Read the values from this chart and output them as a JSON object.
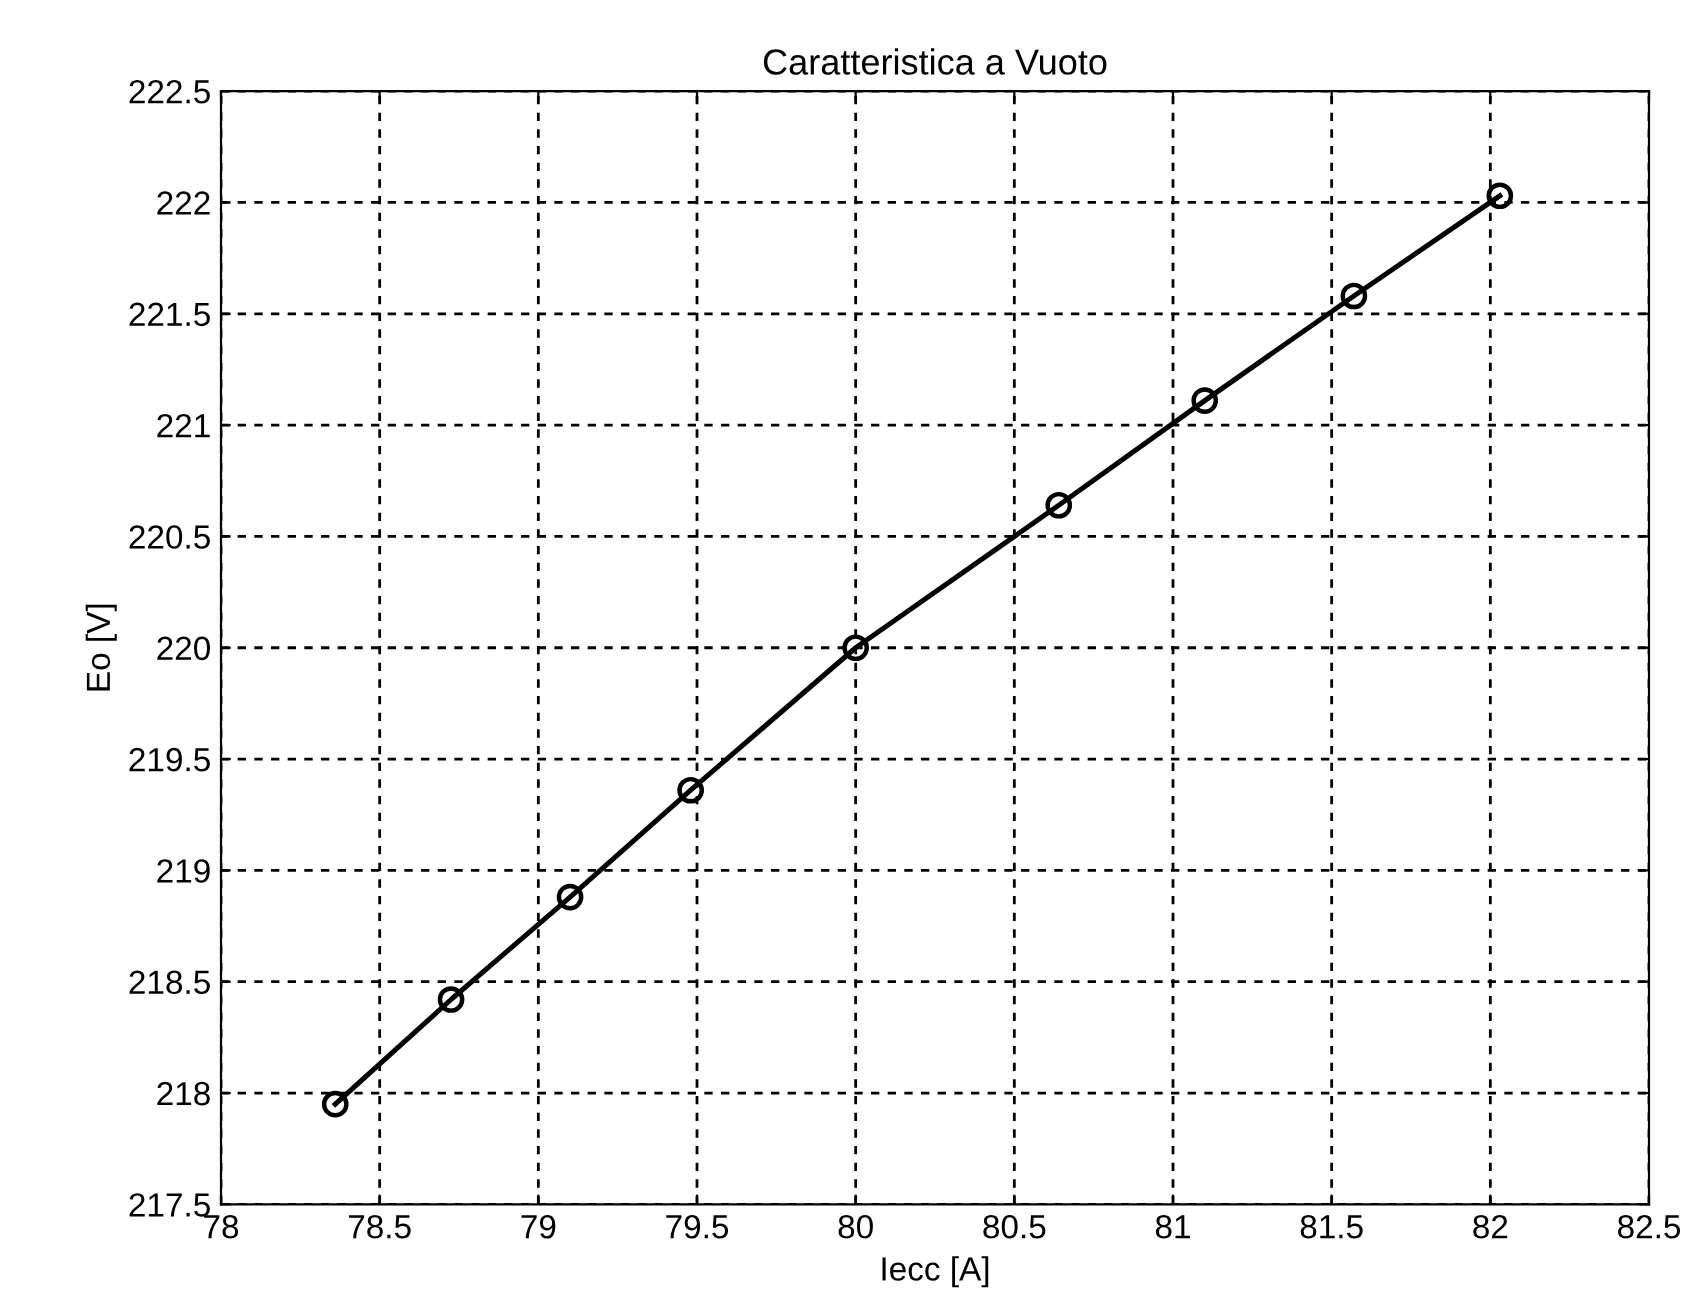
{
  "chart_data": {
    "type": "line",
    "title": "Caratteristica a Vuoto",
    "xlabel": "Iecc [A]",
    "ylabel": "Eo [V]",
    "x": [
      78.36,
      78.725,
      79.1,
      79.48,
      80.0,
      80.64,
      81.1,
      81.57,
      82.03
    ],
    "series": [
      {
        "color": "#000000",
        "values": [
          217.95,
          218.42,
          218.88,
          219.36,
          220.0,
          220.64,
          221.11,
          221.58,
          222.03
        ]
      }
    ],
    "xlim": [
      78,
      82.5
    ],
    "xticks": [
      78,
      78.5,
      79,
      79.5,
      80,
      80.5,
      81,
      81.5,
      82,
      82.5
    ],
    "ylim": [
      217.5,
      222.5
    ],
    "yticks": [
      217.5,
      218,
      218.5,
      219,
      219.5,
      220,
      220.5,
      221,
      221.5,
      222,
      222.5
    ],
    "grid": true,
    "marker": "circle",
    "line_style": "solid",
    "legend": false
  }
}
